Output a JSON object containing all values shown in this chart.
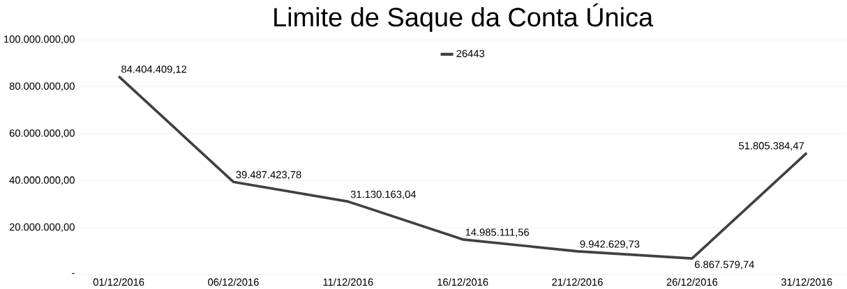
{
  "chart_data": {
    "type": "line",
    "title": "Limite de Saque da Conta Única",
    "categories": [
      "01/12/2016",
      "06/12/2016",
      "11/12/2016",
      "16/12/2016",
      "21/12/2016",
      "26/12/2016",
      "31/12/2016"
    ],
    "series": [
      {
        "name": "26443",
        "color": "#404040",
        "values": [
          84404409.12,
          39487423.78,
          31130163.04,
          14985111.56,
          9942629.73,
          6867579.74,
          51805384.47
        ],
        "value_labels": [
          "84.404.409,12",
          "39.487.423,78",
          "31.130.163,04",
          "14.985.111,56",
          "9.942.629,73",
          "6.867.579,74",
          "51.805.384,47"
        ]
      }
    ],
    "ylim": [
      0,
      100000000
    ],
    "yticks": [
      {
        "value": 0,
        "label": "-"
      },
      {
        "value": 20000000,
        "label": "20.000.000,00"
      },
      {
        "value": 40000000,
        "label": "40.000.000,00"
      },
      {
        "value": 60000000,
        "label": "60.000.000,00"
      },
      {
        "value": 80000000,
        "label": "80.000.000,00"
      },
      {
        "value": 100000000,
        "label": "100.000.000,00"
      }
    ],
    "grid": "y",
    "legend": "top",
    "marker": "none",
    "line_style": "solid"
  }
}
